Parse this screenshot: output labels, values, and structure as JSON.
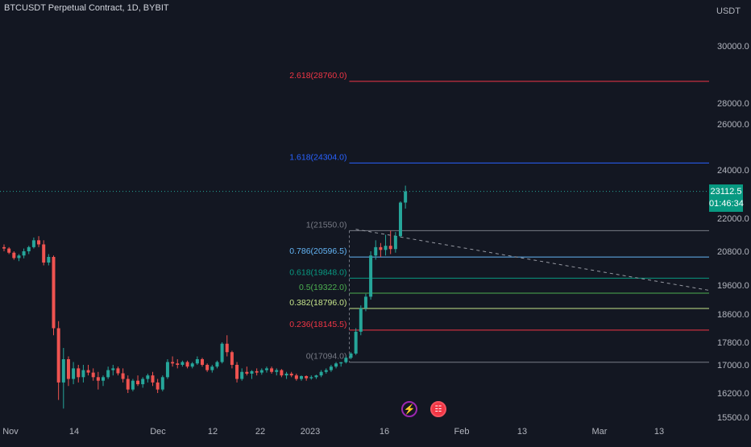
{
  "chart_title": "BTCUSDT Perpetual Contract, 1D, BYBIT",
  "unit_label": "USDT",
  "current_price": "23112.5",
  "countdown": "01:46:34",
  "colors": {
    "background": "#131722",
    "up": "#26a69a",
    "down": "#ef5350",
    "grid": "#1e222d",
    "text": "#b2b5be"
  },
  "chart_data": {
    "type": "candlestick",
    "y_ticks": [
      "15500.0",
      "16200.0",
      "17000.0",
      "17800.0",
      "18600.0",
      "19600.0",
      "20800.0",
      "22000.0",
      "24000.0",
      "26000.0",
      "28000.0",
      "30000.0"
    ],
    "x_ticks": [
      "Nov",
      "14",
      "Dec",
      "12",
      "22",
      "2023",
      "16",
      "Feb",
      "13",
      "Mar",
      "13"
    ],
    "ylim": [
      15400,
      31000
    ],
    "fib_levels": [
      {
        "label": "2.618(28760.0)",
        "value": 28760,
        "color": "#f23645"
      },
      {
        "label": "1.618(24304.0)",
        "value": 24304,
        "color": "#2962ff"
      },
      {
        "label": "1(21550.0)",
        "value": 21550,
        "color": "#787b86"
      },
      {
        "label": "0.786(20596.5)",
        "value": 20596.5,
        "color": "#64b5f6"
      },
      {
        "label": "0.618(19848.0)",
        "value": 19848,
        "color": "#089981"
      },
      {
        "label": "0.5(19322.0)",
        "value": 19322,
        "color": "#4caf50"
      },
      {
        "label": "0.382(18796.0)",
        "value": 18796,
        "color": "#c6e48b"
      },
      {
        "label": "0.236(18145.5)",
        "value": 18145.5,
        "color": "#f23645"
      },
      {
        "label": "0(17094.0)",
        "value": 17094,
        "color": "#787b86"
      }
    ],
    "current_value": 23112.5,
    "candles": [
      [
        20950,
        21050,
        20800,
        20900
      ],
      [
        20900,
        20950,
        20700,
        20750
      ],
      [
        20750,
        20800,
        20500,
        20560
      ],
      [
        20560,
        20700,
        20450,
        20650
      ],
      [
        20650,
        20900,
        20550,
        20800
      ],
      [
        20800,
        21000,
        20700,
        20950
      ],
      [
        20950,
        21300,
        20900,
        21200
      ],
      [
        21200,
        21350,
        20950,
        21050
      ],
      [
        21050,
        21200,
        20300,
        20400
      ],
      [
        20400,
        20700,
        20300,
        20600
      ],
      [
        20600,
        20650,
        18000,
        18200
      ],
      [
        18200,
        18400,
        16000,
        16500
      ],
      [
        16500,
        17600,
        15750,
        17200
      ],
      [
        17200,
        17300,
        16400,
        16600
      ],
      [
        16600,
        17100,
        16450,
        16900
      ],
      [
        16900,
        17000,
        16500,
        16650
      ],
      [
        16650,
        17000,
        16500,
        16850
      ],
      [
        16850,
        17000,
        16700,
        16780
      ],
      [
        16780,
        16900,
        16550,
        16650
      ],
      [
        16650,
        16800,
        16300,
        16550
      ],
      [
        16550,
        16700,
        16400,
        16650
      ],
      [
        16650,
        16950,
        16600,
        16850
      ],
      [
        16850,
        17000,
        16700,
        16900
      ],
      [
        16900,
        16950,
        16700,
        16760
      ],
      [
        16760,
        16900,
        16500,
        16600
      ],
      [
        16600,
        16700,
        16200,
        16300
      ],
      [
        16300,
        16600,
        16250,
        16550
      ],
      [
        16550,
        16700,
        16400,
        16450
      ],
      [
        16450,
        16650,
        16350,
        16600
      ],
      [
        16600,
        16750,
        16500,
        16700
      ],
      [
        16700,
        16800,
        16400,
        16500
      ],
      [
        16500,
        16600,
        16200,
        16300
      ],
      [
        16300,
        16700,
        16250,
        16650
      ],
      [
        16650,
        17200,
        16600,
        17100
      ],
      [
        17100,
        17300,
        16950,
        17050
      ],
      [
        17050,
        17200,
        16900,
        17000
      ],
      [
        17000,
        17150,
        16950,
        17100
      ],
      [
        17100,
        17150,
        16900,
        16950
      ],
      [
        16950,
        17100,
        16900,
        17050
      ],
      [
        17050,
        17300,
        17000,
        17200
      ],
      [
        17200,
        17250,
        16950,
        17000
      ],
      [
        17000,
        17050,
        16800,
        16850
      ],
      [
        16850,
        17000,
        16780,
        16950
      ],
      [
        16950,
        17150,
        16900,
        17100
      ],
      [
        17100,
        17800,
        17050,
        17750
      ],
      [
        17750,
        18000,
        17300,
        17450
      ],
      [
        17450,
        17500,
        16900,
        17000
      ],
      [
        17000,
        17100,
        16500,
        16600
      ],
      [
        16600,
        16900,
        16550,
        16800
      ],
      [
        16800,
        16950,
        16700,
        16750
      ],
      [
        16750,
        16850,
        16600,
        16820
      ],
      [
        16820,
        16900,
        16700,
        16780
      ],
      [
        16780,
        16900,
        16720,
        16850
      ],
      [
        16850,
        16950,
        16780,
        16900
      ],
      [
        16900,
        16950,
        16750,
        16800
      ],
      [
        16800,
        16900,
        16700,
        16850
      ],
      [
        16850,
        16880,
        16650,
        16700
      ],
      [
        16700,
        16800,
        16600,
        16750
      ],
      [
        16750,
        16800,
        16650,
        16700
      ],
      [
        16700,
        16750,
        16550,
        16600
      ],
      [
        16600,
        16700,
        16550,
        16680
      ],
      [
        16680,
        16700,
        16550,
        16620
      ],
      [
        16620,
        16700,
        16580,
        16650
      ],
      [
        16650,
        16720,
        16600,
        16700
      ],
      [
        16700,
        16850,
        16650,
        16800
      ],
      [
        16800,
        16900,
        16750,
        16850
      ],
      [
        16850,
        17000,
        16800,
        16950
      ],
      [
        16950,
        17100,
        16900,
        17050
      ],
      [
        17050,
        17100,
        16950,
        17094
      ],
      [
        17094,
        17300,
        17050,
        17250
      ],
      [
        17250,
        17450,
        17200,
        17400
      ],
      [
        17400,
        18200,
        17350,
        18100
      ],
      [
        18100,
        18900,
        18000,
        18800
      ],
      [
        18800,
        19300,
        18700,
        19200
      ],
      [
        19200,
        20800,
        19100,
        20650
      ],
      [
        20650,
        21200,
        20500,
        20950
      ],
      [
        20950,
        21100,
        20600,
        20850
      ],
      [
        20850,
        21400,
        20650,
        21000
      ],
      [
        21000,
        21550,
        20700,
        20880
      ],
      [
        20880,
        21500,
        20750,
        21350
      ],
      [
        21350,
        22700,
        21300,
        22650
      ],
      [
        22650,
        23350,
        22400,
        23112
      ]
    ]
  }
}
